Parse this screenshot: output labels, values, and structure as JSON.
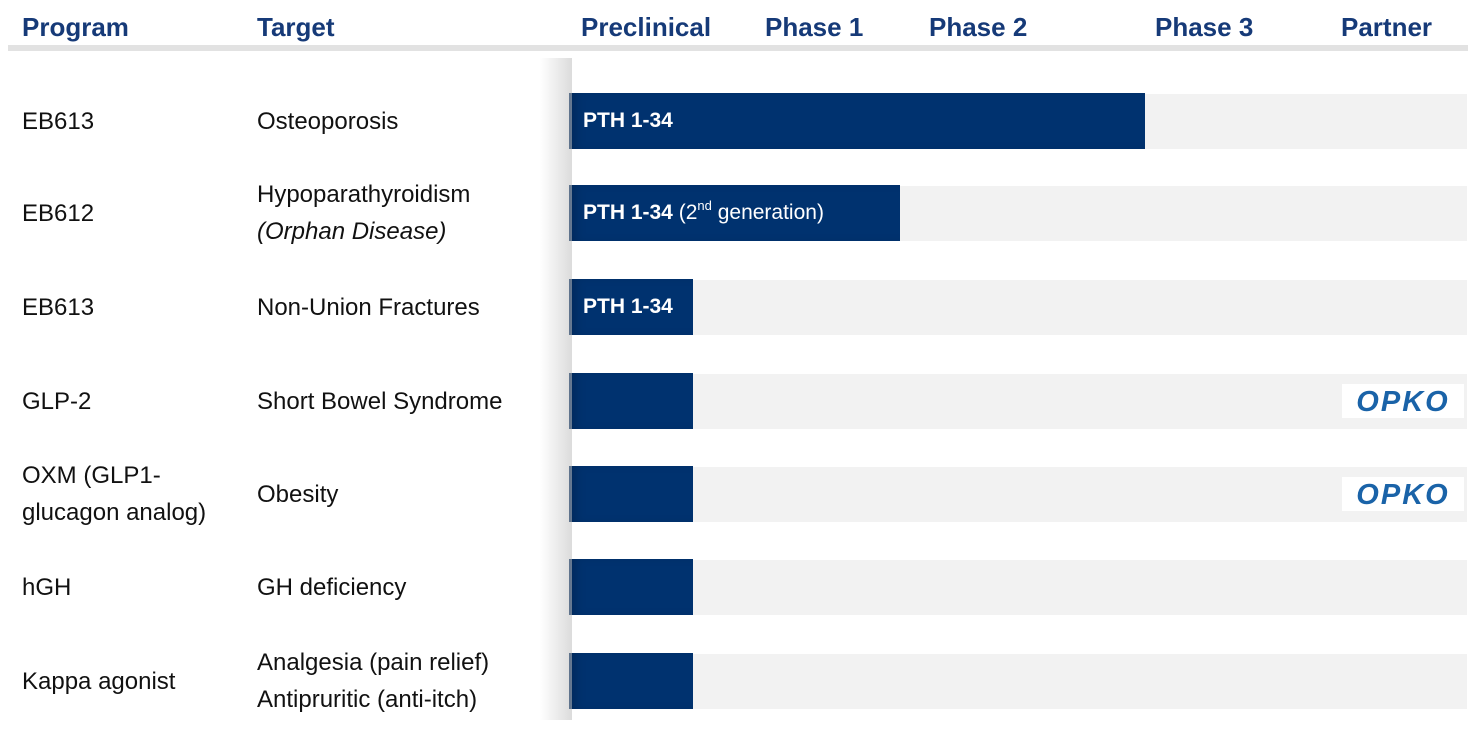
{
  "header": {
    "program": "Program",
    "target": "Target",
    "preclinical": "Preclinical",
    "phase1": "Phase 1",
    "phase2": "Phase 2",
    "phase3": "Phase 3",
    "partner": "Partner"
  },
  "colors": {
    "header_text": "#163a78",
    "bar": "#00326f",
    "track": "#f2f2f2",
    "partner_logo": "#1a63a8"
  },
  "chart_data": {
    "type": "bar",
    "stages": [
      "Preclinical",
      "Phase 1",
      "Phase 2",
      "Phase 3"
    ],
    "rows": [
      {
        "program": "EB613",
        "target": "Osteoporosis",
        "target_note": "",
        "bar_label": "PTH 1-34",
        "bar_label_extra": "",
        "progress_stages": 3.0,
        "partner": ""
      },
      {
        "program": "EB612",
        "target": "Hypoparathyroidism",
        "target_note": "(Orphan Disease)",
        "bar_label": "PTH 1-34",
        "bar_label_extra": "(2",
        "bar_label_sup": "nd",
        "bar_label_tail": " generation)",
        "progress_stages": 1.85,
        "partner": ""
      },
      {
        "program": "EB613",
        "target": "Non-Union Fractures",
        "target_note": "",
        "bar_label": "PTH 1-34",
        "bar_label_extra": "",
        "progress_stages": 0.65,
        "partner": ""
      },
      {
        "program": "GLP-2",
        "target": "Short Bowel Syndrome",
        "target_note": "",
        "bar_label": "",
        "bar_label_extra": "",
        "progress_stages": 0.65,
        "partner": "OPKO"
      },
      {
        "program": "OXM (GLP1-",
        "program_line2": "glucagon analog)",
        "target": "Obesity",
        "target_note": "",
        "bar_label": "",
        "bar_label_extra": "",
        "progress_stages": 0.65,
        "partner": "OPKO"
      },
      {
        "program": "hGH",
        "target": "GH deficiency",
        "target_note": "",
        "bar_label": "",
        "bar_label_extra": "",
        "progress_stages": 0.65,
        "partner": ""
      },
      {
        "program": "Kappa agonist",
        "target": "Analgesia (pain relief)",
        "target_note": "Antipruritic (anti-itch)",
        "bar_label": "",
        "bar_label_extra": "",
        "progress_stages": 0.65,
        "partner": ""
      }
    ]
  }
}
